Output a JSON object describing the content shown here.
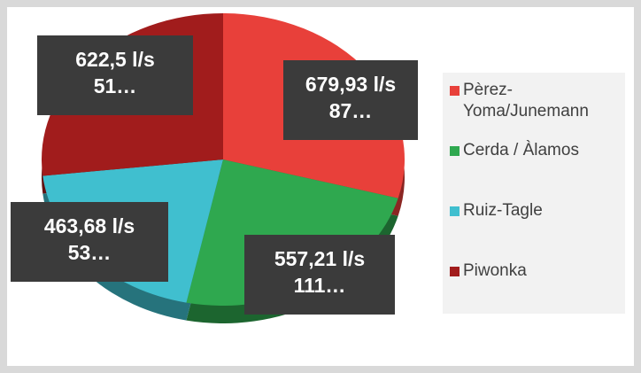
{
  "chart_data": {
    "type": "pie",
    "categories": [
      "Pèrez-Yoma/Junemann",
      "Cerda / Àlamos",
      "Ruiz-Tagle",
      "Piwonka"
    ],
    "values": [
      679.93,
      557.21,
      463.68,
      622.5
    ],
    "value_labels": [
      "679,93 l/s",
      "557,21 l/s",
      "463,68 l/s",
      "622,5 l/s"
    ],
    "value_sublabels": [
      "87…",
      "111…",
      "53…",
      "51…"
    ],
    "colors": [
      "#e8403a",
      "#2fa84f",
      "#40bfcf",
      "#a11c1c"
    ],
    "legend": "right"
  }
}
